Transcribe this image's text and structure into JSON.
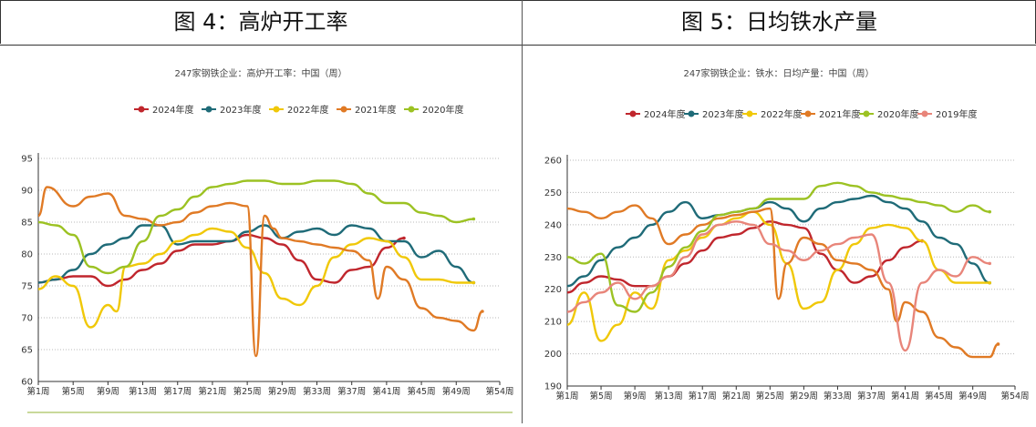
{
  "headers": {
    "left": "图 4：高炉开工率",
    "right": "图 5：日均铁水产量"
  },
  "chart_data": [
    {
      "type": "line",
      "title": "247家钢铁企业：高炉开工率：中国（周）",
      "ylim": [
        60,
        95
      ],
      "yticks": [
        60,
        65,
        70,
        75,
        80,
        85,
        90,
        95
      ],
      "xlim": [
        1,
        54
      ],
      "xticks": [
        1,
        5,
        9,
        13,
        17,
        21,
        25,
        29,
        33,
        37,
        41,
        45,
        49,
        54
      ],
      "xtick_labels": [
        "第1周",
        "第5周",
        "第9周",
        "第13周",
        "第17周",
        "第21周",
        "第25周",
        "第29周",
        "第33周",
        "第37周",
        "第41周",
        "第45周",
        "第49周",
        "第54周"
      ],
      "grid": true,
      "legend_position": "top",
      "series": [
        {
          "name": "2024年度",
          "color": "#c0262d",
          "x": [
            1,
            3,
            5,
            7,
            9,
            11,
            13,
            15,
            17,
            19,
            21,
            23,
            25,
            27,
            29,
            31,
            33,
            35,
            37,
            39,
            41,
            43
          ],
          "y": [
            75.5,
            76,
            76.5,
            76.5,
            75,
            76,
            77.5,
            78.5,
            80.5,
            81.5,
            81.5,
            82,
            83,
            82.5,
            81.5,
            79,
            76,
            75.5,
            77.5,
            78,
            81,
            82.5
          ]
        },
        {
          "name": "2023年度",
          "color": "#1f6b78",
          "x": [
            1,
            3,
            5,
            7,
            9,
            11,
            13,
            15,
            17,
            19,
            21,
            23,
            25,
            27,
            29,
            31,
            33,
            35,
            37,
            39,
            41,
            43,
            45,
            47,
            49,
            51
          ],
          "y": [
            75.5,
            76,
            77.5,
            80,
            81.5,
            82.5,
            84.5,
            84.5,
            81.5,
            82,
            82,
            82,
            83.5,
            84.5,
            82.5,
            83.5,
            84,
            83,
            84.5,
            84,
            82,
            82,
            79.5,
            80.5,
            78,
            75.5
          ]
        },
        {
          "name": "2022年度",
          "color": "#f0c808",
          "x": [
            1,
            3,
            5,
            7,
            9,
            10,
            11,
            13,
            15,
            17,
            19,
            21,
            23,
            25,
            27,
            29,
            31,
            33,
            35,
            37,
            39,
            41,
            43,
            45,
            47,
            49,
            51
          ],
          "y": [
            74.5,
            76.5,
            75,
            68.5,
            72,
            71,
            78,
            78.5,
            80,
            82,
            83,
            84,
            83.5,
            81,
            77,
            73,
            72,
            75,
            79.5,
            81.5,
            82.5,
            82,
            79.5,
            76,
            76,
            75.5,
            75.5
          ]
        },
        {
          "name": "2021年度",
          "color": "#e07a25",
          "x": [
            1,
            2,
            5,
            7,
            9,
            11,
            13,
            15,
            17,
            19,
            21,
            23,
            25,
            26,
            27,
            28,
            29,
            31,
            33,
            35,
            37,
            39,
            40,
            41,
            43,
            45,
            47,
            49,
            51,
            52
          ],
          "y": [
            86,
            90.5,
            87.5,
            89,
            89.5,
            86,
            85.5,
            84.5,
            85,
            86.5,
            87.5,
            88,
            87.5,
            64,
            86,
            84,
            82.5,
            82,
            81.5,
            81,
            80.5,
            79,
            73,
            78,
            76,
            71.5,
            70,
            69.5,
            68,
            71
          ]
        },
        {
          "name": "2020年度",
          "color": "#9cc223",
          "x": [
            1,
            3,
            5,
            7,
            9,
            11,
            13,
            15,
            17,
            19,
            21,
            23,
            25,
            27,
            29,
            31,
            33,
            35,
            37,
            39,
            41,
            43,
            45,
            47,
            49,
            51
          ],
          "y": [
            85,
            84.5,
            83,
            78,
            77,
            78,
            82,
            86,
            87,
            89,
            90.5,
            91,
            91.5,
            91.5,
            91,
            91,
            91.5,
            91.5,
            91,
            89.5,
            88,
            88,
            86.5,
            86,
            85,
            85.5
          ]
        }
      ]
    },
    {
      "type": "line",
      "title": "247家钢铁企业：铁水：日均产量：中国（周）",
      "ylim": [
        190,
        260
      ],
      "yticks": [
        190,
        200,
        210,
        220,
        230,
        240,
        250,
        260
      ],
      "xlim": [
        1,
        54
      ],
      "xticks": [
        1,
        5,
        9,
        13,
        17,
        21,
        25,
        29,
        33,
        37,
        41,
        45,
        49,
        54
      ],
      "xtick_labels": [
        "第1周",
        "第5周",
        "第9周",
        "第13周",
        "第17周",
        "第21周",
        "第25周",
        "第29周",
        "第33周",
        "第37周",
        "第41周",
        "第45周",
        "第49周",
        "第54周"
      ],
      "grid": true,
      "legend_position": "top",
      "series": [
        {
          "name": "2024年度",
          "color": "#c0262d",
          "x": [
            1,
            3,
            5,
            7,
            9,
            11,
            13,
            15,
            17,
            19,
            21,
            23,
            25,
            27,
            29,
            31,
            33,
            35,
            37,
            39,
            41,
            43
          ],
          "y": [
            219,
            222,
            224,
            223,
            221,
            221,
            224,
            228,
            232,
            236,
            237,
            239,
            241,
            240,
            239,
            231,
            226,
            222,
            224,
            229,
            233,
            235
          ]
        },
        {
          "name": "2023年度",
          "color": "#1f6b78",
          "x": [
            1,
            3,
            5,
            7,
            9,
            11,
            13,
            15,
            17,
            19,
            21,
            23,
            25,
            27,
            29,
            31,
            33,
            35,
            37,
            39,
            41,
            43,
            45,
            47,
            49,
            51
          ],
          "y": [
            221,
            224,
            229,
            233,
            236,
            240,
            244,
            247,
            242,
            243,
            244,
            245,
            247,
            245,
            241,
            245,
            247,
            248,
            249,
            247,
            245,
            241,
            236,
            234,
            228,
            222
          ]
        },
        {
          "name": "2022年度",
          "color": "#f0c808",
          "x": [
            1,
            3,
            5,
            7,
            9,
            11,
            13,
            15,
            17,
            19,
            21,
            23,
            25,
            27,
            29,
            31,
            33,
            35,
            37,
            39,
            41,
            43,
            45,
            47,
            49,
            51
          ],
          "y": [
            209,
            219,
            204,
            209,
            219,
            214,
            229,
            232,
            236,
            240,
            242,
            244,
            240,
            228,
            214,
            216,
            226,
            234,
            239,
            240,
            239,
            235,
            226,
            222,
            222,
            222
          ]
        },
        {
          "name": "2021年度",
          "color": "#e07a25",
          "x": [
            1,
            3,
            5,
            7,
            9,
            11,
            13,
            15,
            17,
            19,
            21,
            23,
            25,
            26,
            27,
            29,
            31,
            33,
            35,
            37,
            39,
            40,
            41,
            43,
            45,
            47,
            49,
            51,
            52
          ],
          "y": [
            245,
            244,
            242,
            244,
            246,
            242,
            234,
            237,
            240,
            242,
            243,
            244,
            245,
            217,
            228,
            236,
            234,
            229,
            228,
            226,
            220,
            210,
            216,
            213,
            205,
            202,
            199,
            199,
            203
          ]
        },
        {
          "name": "2020年度",
          "color": "#9cc223",
          "x": [
            1,
            3,
            5,
            7,
            9,
            11,
            13,
            15,
            17,
            19,
            21,
            23,
            25,
            27,
            29,
            31,
            33,
            35,
            37,
            39,
            41,
            43,
            45,
            47,
            49,
            51
          ],
          "y": [
            230,
            228,
            231,
            215,
            213,
            219,
            227,
            233,
            238,
            243,
            244,
            245,
            248,
            248,
            248,
            252,
            253,
            252,
            250,
            249,
            248,
            247,
            246,
            244,
            246,
            244
          ]
        },
        {
          "name": "2019年度",
          "color": "#e8857a",
          "x": [
            1,
            3,
            5,
            7,
            9,
            11,
            13,
            15,
            17,
            19,
            21,
            23,
            25,
            27,
            29,
            31,
            33,
            35,
            37,
            39,
            41,
            43,
            45,
            47,
            49,
            51
          ],
          "y": [
            213,
            216,
            219,
            222,
            217,
            221,
            224,
            230,
            237,
            240,
            241,
            240,
            234,
            232,
            229,
            232,
            234,
            236,
            237,
            222,
            201,
            222,
            226,
            224,
            230,
            228
          ]
        }
      ]
    }
  ]
}
